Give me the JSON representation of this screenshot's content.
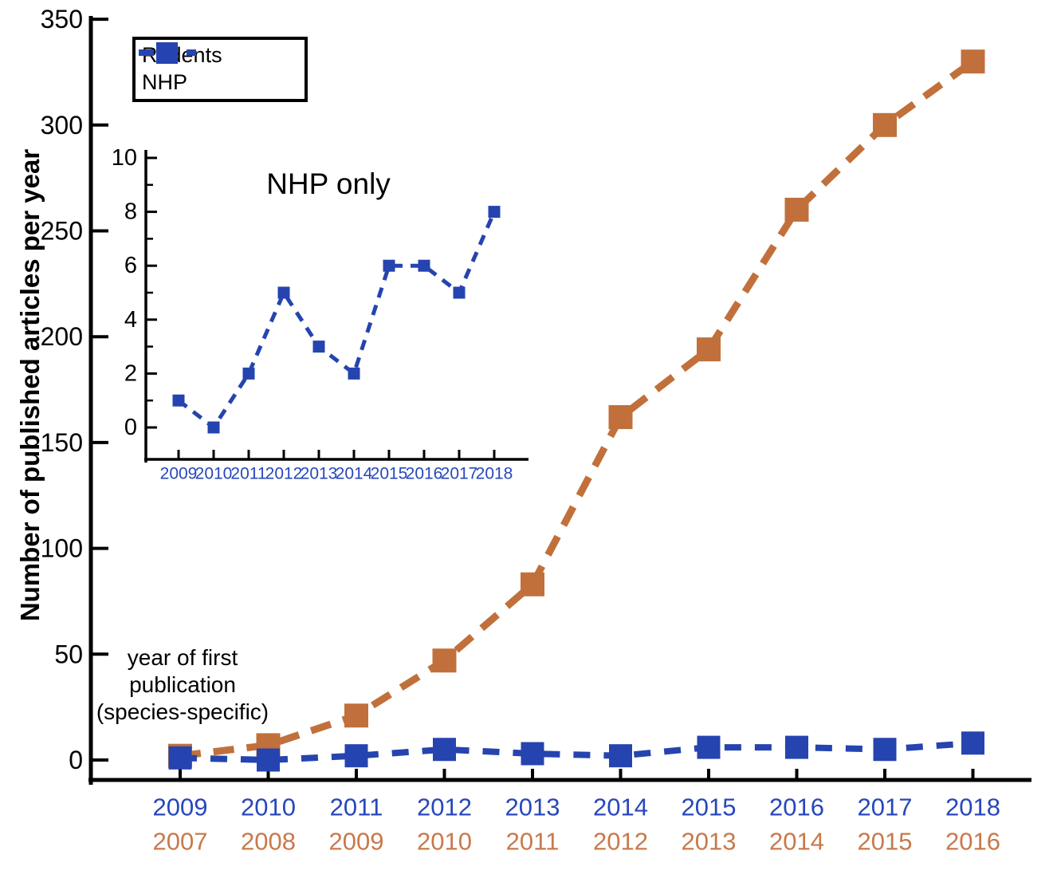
{
  "figure": {
    "ylabel": "Number of published articles per year",
    "annotation_lines": [
      "year of first",
      "publication",
      "(species-specific)"
    ],
    "inset_title": "NHP only",
    "colors": {
      "rodents": "#C1703C",
      "nhp": "#2544AF",
      "rodents_label": "#C8794B",
      "nhp_label": "#2747BC",
      "axis": "#000000"
    },
    "legend": {
      "items": [
        {
          "label": "Rodents",
          "color": "#C1703C"
        },
        {
          "label": "NHP",
          "color": "#2544AF"
        }
      ]
    }
  },
  "chart_data": [
    {
      "id": "main",
      "type": "line",
      "title": "",
      "ylabel": "Number of published articles per year",
      "ylim": [
        0,
        350
      ],
      "yticks": [
        0,
        50,
        100,
        150,
        200,
        250,
        300,
        350
      ],
      "grid": false,
      "legend_position": "top-left",
      "x_label_rows": [
        {
          "name": "nhp-years",
          "color": "#2747BC",
          "labels": [
            "2009",
            "2010",
            "2011",
            "2012",
            "2013",
            "2014",
            "2015",
            "2016",
            "2017",
            "2018"
          ]
        },
        {
          "name": "rodent-years",
          "color": "#C8794B",
          "labels": [
            "2007",
            "2008",
            "2009",
            "2010",
            "2011",
            "2012",
            "2013",
            "2014",
            "2015",
            "2016"
          ]
        }
      ],
      "series": [
        {
          "name": "Rodents",
          "color": "#C1703C",
          "line_style": "dashed",
          "marker": "square",
          "values": [
            2,
            7,
            21,
            47,
            83,
            162,
            194,
            260,
            300,
            330
          ]
        },
        {
          "name": "NHP",
          "color": "#2544AF",
          "line_style": "dashed",
          "marker": "square",
          "values": [
            1,
            0,
            2,
            5,
            3,
            2,
            6,
            6,
            5,
            8
          ]
        }
      ]
    },
    {
      "id": "inset",
      "type": "line",
      "title": "NHP only",
      "categories": [
        "2009",
        "2010",
        "2011",
        "2012",
        "2013",
        "2014",
        "2015",
        "2016",
        "2017",
        "2018"
      ],
      "ylim": [
        0,
        10
      ],
      "yticks": [
        0,
        2,
        4,
        6,
        8,
        10
      ],
      "minor_yticks": [
        1,
        3,
        5,
        7,
        9
      ],
      "grid": false,
      "series": [
        {
          "name": "NHP",
          "color": "#2544AF",
          "line_style": "dashed",
          "marker": "square",
          "values": [
            1,
            0,
            2,
            5,
            3,
            2,
            6,
            6,
            5,
            8
          ]
        }
      ]
    }
  ]
}
